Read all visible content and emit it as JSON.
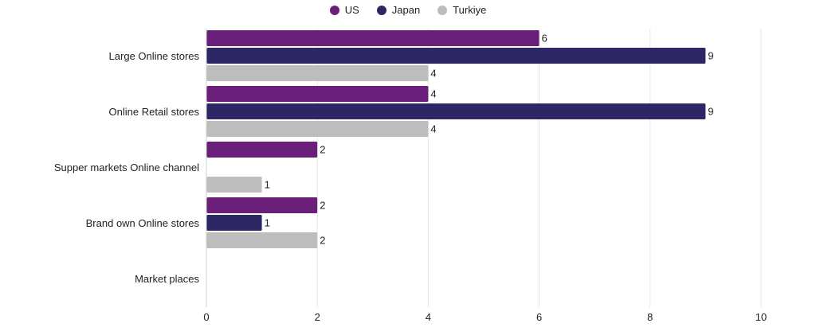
{
  "chart_data": {
    "type": "bar",
    "orientation": "horizontal",
    "categories": [
      "Large Online stores",
      "Online Retail stores",
      "Supper markets Online channel",
      "Brand own Online stores",
      "Market places"
    ],
    "series": [
      {
        "name": "US",
        "color": "#6a1f7a",
        "values": [
          6,
          4,
          2,
          2,
          null
        ]
      },
      {
        "name": "Japan",
        "color": "#2e2766",
        "values": [
          9,
          9,
          null,
          1,
          null
        ]
      },
      {
        "name": "Turkiye",
        "color": "#bdbdbd",
        "values": [
          4,
          4,
          1,
          2,
          null
        ]
      }
    ],
    "xlim": [
      0,
      10
    ],
    "xticks": [
      "0",
      "2",
      "4",
      "6",
      "8",
      "10"
    ],
    "data_labels": true,
    "grid": true,
    "legend_position": "top-center"
  }
}
